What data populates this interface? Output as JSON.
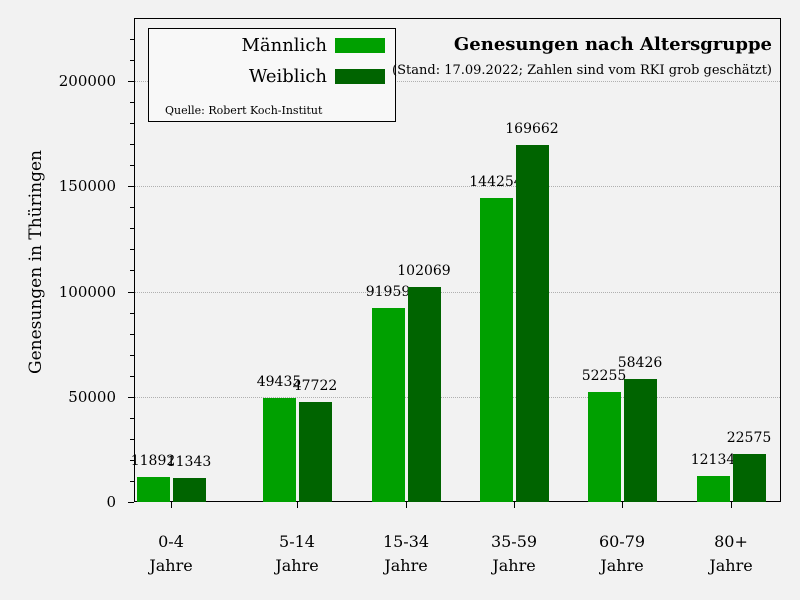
{
  "chart_data": {
    "type": "bar",
    "title": "Genesungen nach Altersgruppe",
    "subtitle": "(Stand: 17.09.2022; Zahlen sind vom RKI grob geschätzt)",
    "source": "Quelle: Robert Koch-Institut",
    "xlabel": "",
    "ylabel": "Genesungen in Thüringen",
    "ylim": [
      0,
      230000
    ],
    "yticks": [
      "0",
      "50000",
      "100000",
      "150000",
      "200000"
    ],
    "grid": true,
    "legend_position": "upper left",
    "categories": [
      "0-4 Jahre",
      "5-14 Jahre",
      "15-34 Jahre",
      "35-59 Jahre",
      "60-79 Jahre",
      "80+ Jahre"
    ],
    "category_lines": [
      [
        "0-4",
        "Jahre"
      ],
      [
        "5-14",
        "Jahre"
      ],
      [
        "15-34",
        "Jahre"
      ],
      [
        "35-59",
        "Jahre"
      ],
      [
        "60-79",
        "Jahre"
      ],
      [
        "80+",
        "Jahre"
      ]
    ],
    "series": [
      {
        "name": "Männlich",
        "color": "#00a000",
        "values": [
          11892,
          49435,
          91959,
          144254,
          52255,
          12134
        ]
      },
      {
        "name": "Weiblich",
        "color": "#006400",
        "values": [
          11343,
          47722,
          102069,
          169662,
          58426,
          22575
        ]
      }
    ]
  }
}
